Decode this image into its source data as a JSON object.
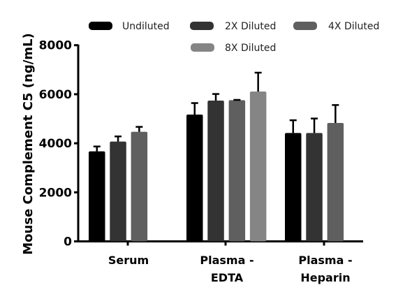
{
  "chart_data": {
    "type": "bar",
    "ylabel": "Mouse Complement C5 (ng/mL)",
    "xlabel": "",
    "ylim": [
      0,
      8000
    ],
    "yticks": [
      0,
      2000,
      4000,
      6000,
      8000
    ],
    "grid": false,
    "legend_placement": "top",
    "categories": [
      [
        "Serum"
      ],
      [
        "Plasma -",
        "EDTA"
      ],
      [
        "Plasma -",
        "Heparin"
      ]
    ],
    "series": [
      {
        "name": "Undiluted",
        "color": "#000000",
        "values": [
          3670,
          5170,
          4420
        ],
        "errors": [
          200,
          470,
          520
        ]
      },
      {
        "name": "2X Diluted",
        "color": "#333333",
        "values": [
          4070,
          5740,
          4420
        ],
        "errors": [
          210,
          270,
          590
        ]
      },
      {
        "name": "4X Diluted",
        "color": "#5f5f5f",
        "values": [
          4470,
          5760,
          4830
        ],
        "errors": [
          200,
          10,
          730
        ]
      },
      {
        "name": "8X Diluted",
        "color": "#858585",
        "values": [
          null,
          6110,
          null
        ],
        "errors": [
          null,
          770,
          null
        ]
      }
    ]
  }
}
